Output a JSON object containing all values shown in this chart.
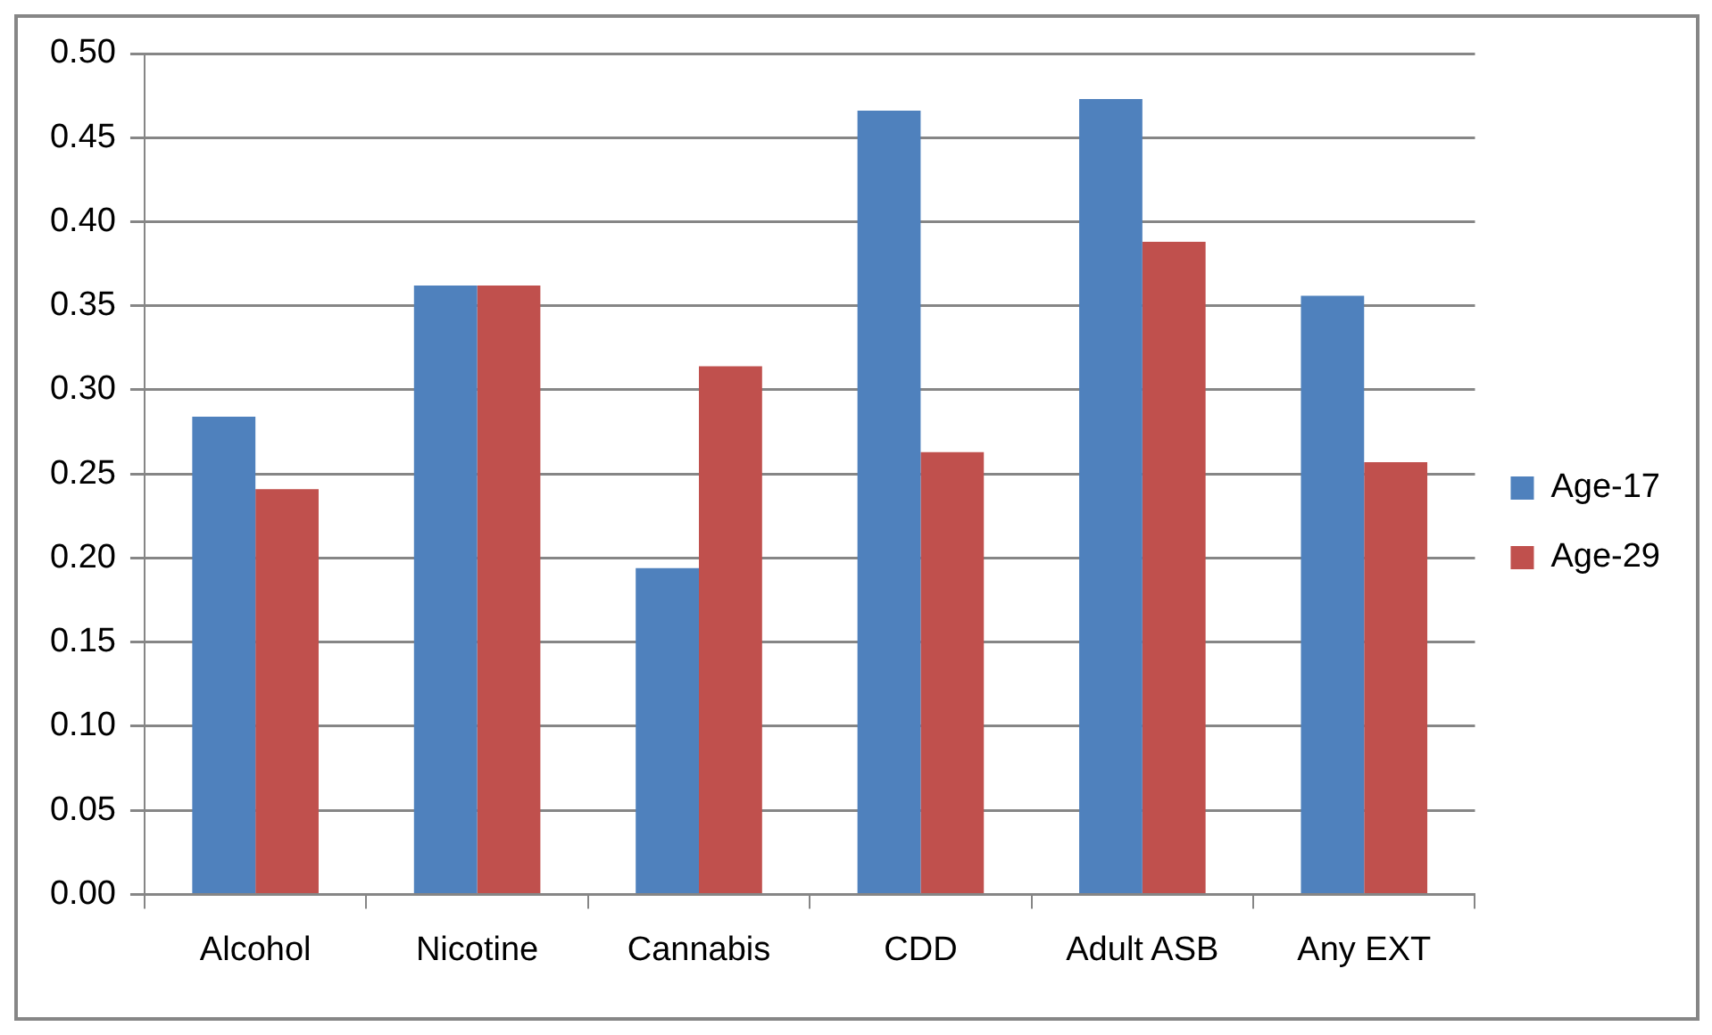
{
  "chart_data": {
    "type": "bar",
    "categories": [
      "Alcohol",
      "Nicotine",
      "Cannabis",
      "CDD",
      "Adult ASB",
      "Any EXT"
    ],
    "series": [
      {
        "name": "Age-17",
        "color": "#4f81bd",
        "values": [
          0.284,
          0.362,
          0.194,
          0.466,
          0.473,
          0.356
        ]
      },
      {
        "name": "Age-29",
        "color": "#c0504d",
        "values": [
          0.241,
          0.362,
          0.314,
          0.263,
          0.388,
          0.257
        ]
      }
    ],
    "ylim": [
      0,
      0.5
    ],
    "yticks": [
      {
        "value": 0,
        "label": "0.00"
      },
      {
        "value": 0.05,
        "label": "0.05"
      },
      {
        "value": 0.1,
        "label": "0.10"
      },
      {
        "value": 0.15,
        "label": "0.15"
      },
      {
        "value": 0.2,
        "label": "0.20"
      },
      {
        "value": 0.25,
        "label": "0.25"
      },
      {
        "value": 0.3,
        "label": "0.30"
      },
      {
        "value": 0.35,
        "label": "0.35"
      },
      {
        "value": 0.4,
        "label": "0.40"
      },
      {
        "value": 0.45,
        "label": "0.45"
      },
      {
        "value": 0.5,
        "label": "0.50"
      }
    ],
    "grid": "y",
    "legend": "right"
  }
}
